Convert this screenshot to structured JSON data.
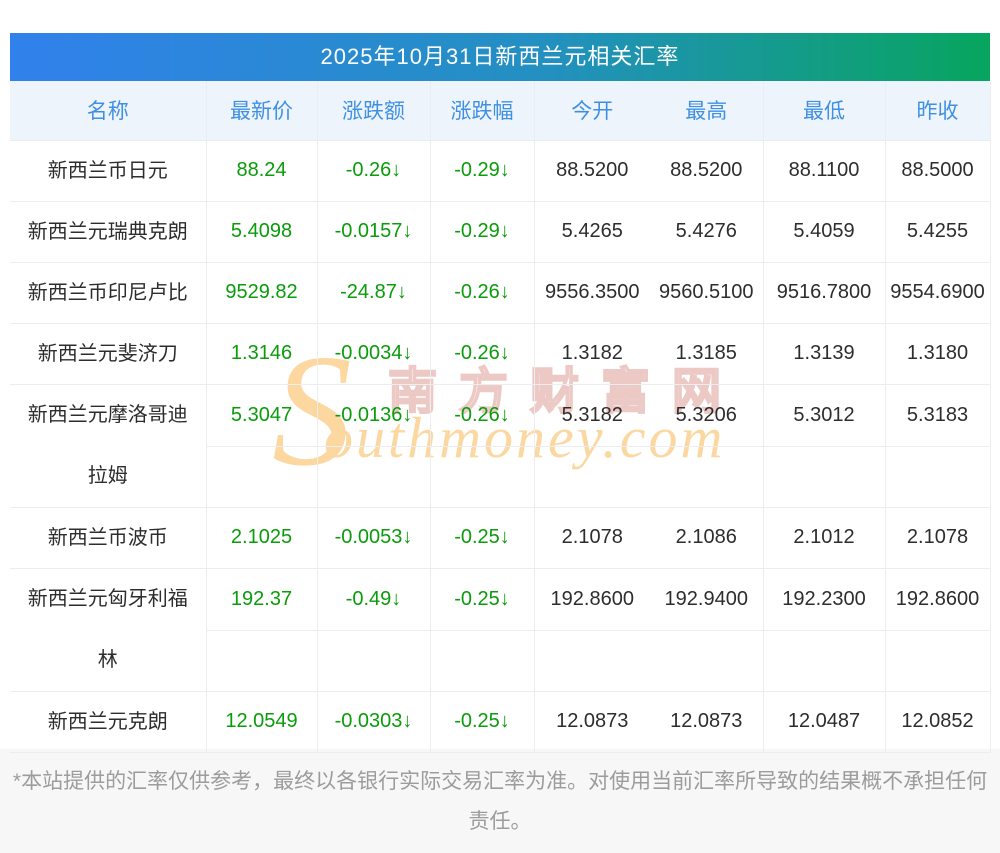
{
  "title": "2025年10月31日新西兰元相关汇率",
  "watermark": {
    "initial": "S",
    "site_name_cn": "南方财富网",
    "site_name_en": "outhmoney.com"
  },
  "table": {
    "columns": [
      "名称",
      "最新价",
      "涨跌额",
      "涨跌幅",
      "今开",
      "最高",
      "最低",
      "昨收"
    ],
    "rows": [
      {
        "name": "新西兰币日元",
        "latest": "88.24",
        "change": "-0.26↓",
        "pct": "-0.29↓",
        "open": "88.5200",
        "high": "88.5200",
        "low": "88.1100",
        "prev_close": "88.5000",
        "tall": false
      },
      {
        "name": "新西兰元瑞典克朗",
        "latest": "5.4098",
        "change": "-0.0157↓",
        "pct": "-0.29↓",
        "open": "5.4265",
        "high": "5.4276",
        "low": "5.4059",
        "prev_close": "5.4255",
        "tall": false
      },
      {
        "name": "新西兰币印尼卢比",
        "latest": "9529.82",
        "change": "-24.87↓",
        "pct": "-0.26↓",
        "open": "9556.3500",
        "high": "9560.5100",
        "low": "9516.7800",
        "prev_close": "9554.6900",
        "tall": false
      },
      {
        "name": "新西兰元斐济刀",
        "latest": "1.3146",
        "change": "-0.0034↓",
        "pct": "-0.26↓",
        "open": "1.3182",
        "high": "1.3185",
        "low": "1.3139",
        "prev_close": "1.3180",
        "tall": false
      },
      {
        "name": "新西兰元摩洛哥迪拉姆",
        "latest": "5.3047",
        "change": "-0.0136↓",
        "pct": "-0.26↓",
        "open": "5.3182",
        "high": "5.3206",
        "low": "5.3012",
        "prev_close": "5.3183",
        "tall": true
      },
      {
        "name": "新西兰币波币",
        "latest": "2.1025",
        "change": "-0.0053↓",
        "pct": "-0.25↓",
        "open": "2.1078",
        "high": "2.1086",
        "low": "2.1012",
        "prev_close": "2.1078",
        "tall": false
      },
      {
        "name": "新西兰元匈牙利福林",
        "latest": "192.37",
        "change": "-0.49↓",
        "pct": "-0.25↓",
        "open": "192.8600",
        "high": "192.9400",
        "low": "192.2300",
        "prev_close": "192.8600",
        "tall": true
      },
      {
        "name": "新西兰元克朗",
        "latest": "12.0549",
        "change": "-0.0303↓",
        "pct": "-0.25↓",
        "open": "12.0873",
        "high": "12.0873",
        "low": "12.0487",
        "prev_close": "12.0852",
        "tall": false
      }
    ]
  },
  "footer": {
    "disclaimer": "*本站提供的汇率仅供参考，最终以各银行实际交易汇率为准。对使用当前汇率所导致的结果概不承担任何责任。"
  },
  "colors": {
    "gradient_start": "#3181ec",
    "gradient_end": "#07a55e",
    "down_green": "#0a9c0a",
    "header_text_blue": "#4090e2",
    "header_bg": "#eef4fc"
  }
}
